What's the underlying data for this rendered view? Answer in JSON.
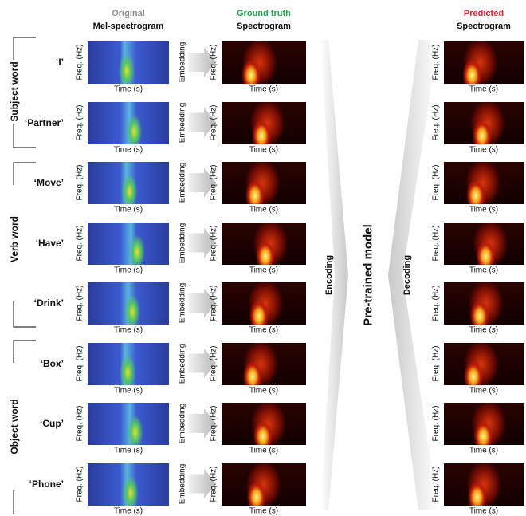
{
  "headers": {
    "original": {
      "line1": "Original",
      "line2": "Mel-spectrogram"
    },
    "ground_truth": {
      "line1": "Ground truth",
      "line2": "Spectrogram"
    },
    "predicted": {
      "line1": "Predicted",
      "line2": "Spectrogram"
    }
  },
  "groups": [
    {
      "label": "Subject word"
    },
    {
      "label": "Verb word"
    },
    {
      "label": "Object word"
    }
  ],
  "rows": [
    {
      "word": "‘I’"
    },
    {
      "word": "‘Partner’"
    },
    {
      "word": "‘Move’"
    },
    {
      "word": "‘Have’"
    },
    {
      "word": "‘Drink’"
    },
    {
      "word": "‘Box’"
    },
    {
      "word": "‘Cup’"
    },
    {
      "word": "‘Phone’"
    }
  ],
  "axis_labels": {
    "freq": "Freq. (Hz)",
    "time": "Time (s)"
  },
  "embedding": "Embedding",
  "encoding": "Encoding",
  "model": "Pre-trained model",
  "decoding": "Decoding"
}
